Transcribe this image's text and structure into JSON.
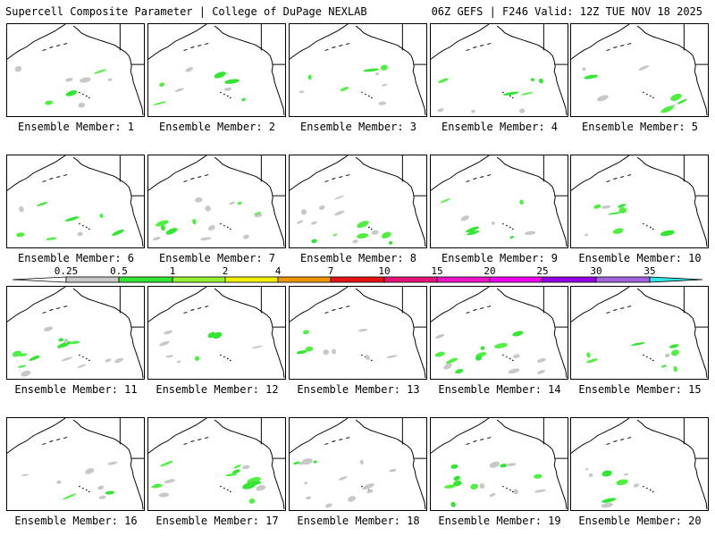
{
  "header": {
    "left": "Supercell Composite Parameter | College of DuPage NEXLAB",
    "right": "06Z GEFS | F246 Valid: 12Z TUE NOV 18 2025"
  },
  "label_prefix": "Ensemble Member:",
  "members": [
    {
      "label": "Ensemble Member: 1",
      "coverage": "low"
    },
    {
      "label": "Ensemble Member: 2",
      "coverage": "low"
    },
    {
      "label": "Ensemble Member: 3",
      "coverage": "low"
    },
    {
      "label": "Ensemble Member: 4",
      "coverage": "low"
    },
    {
      "label": "Ensemble Member: 5",
      "coverage": "low"
    },
    {
      "label": "Ensemble Member: 6",
      "coverage": "low"
    },
    {
      "label": "Ensemble Member: 7",
      "coverage": "medium"
    },
    {
      "label": "Ensemble Member: 8",
      "coverage": "medium"
    },
    {
      "label": "Ensemble Member: 9",
      "coverage": "low"
    },
    {
      "label": "Ensemble Member: 10",
      "coverage": "low"
    },
    {
      "label": "Ensemble Member: 11",
      "coverage": "medium"
    },
    {
      "label": "Ensemble Member: 12",
      "coverage": "low"
    },
    {
      "label": "Ensemble Member: 13",
      "coverage": "low"
    },
    {
      "label": "Ensemble Member: 14",
      "coverage": "medium"
    },
    {
      "label": "Ensemble Member: 15",
      "coverage": "low"
    },
    {
      "label": "Ensemble Member: 16",
      "coverage": "low"
    },
    {
      "label": "Ensemble Member: 17",
      "coverage": "medium"
    },
    {
      "label": "Ensemble Member: 18",
      "coverage": "medium"
    },
    {
      "label": "Ensemble Member: 19",
      "coverage": "medium"
    },
    {
      "label": "Ensemble Member: 20",
      "coverage": "low"
    }
  ],
  "colorbar": {
    "ticks": [
      "0.25",
      "0.5",
      "1",
      "2",
      "4",
      "7",
      "10",
      "15",
      "20",
      "25",
      "30",
      "35"
    ],
    "colors": [
      "#c8c8c8",
      "#32e632",
      "#96f032",
      "#f0f000",
      "#f09600",
      "#e61414",
      "#e61478",
      "#f014c8",
      "#f000f0",
      "#9600e6",
      "#a064dc",
      "#32e6e6"
    ]
  }
}
